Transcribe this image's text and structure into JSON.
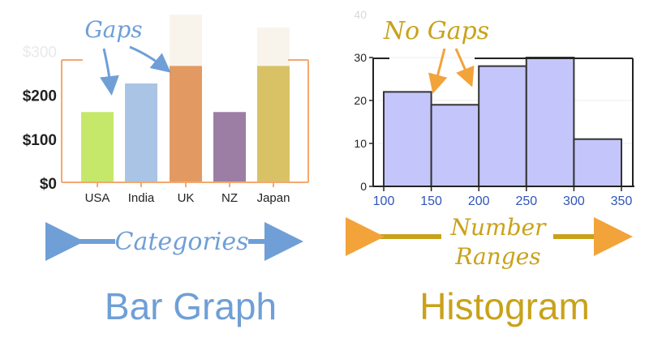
{
  "chart_data": [
    {
      "type": "bar",
      "categories": [
        "USA",
        "India",
        "UK",
        "NZ",
        "Japan"
      ],
      "values": [
        160,
        225,
        265,
        160,
        265
      ],
      "y_ticks": [
        "$0",
        "$100",
        "$200",
        "$300"
      ],
      "ylim": [
        0,
        380
      ],
      "colors": [
        "#c6e86a",
        "#a9c4e4",
        "#e29a62",
        "#9c7ea4",
        "#d9c266"
      ],
      "annotation": "Gaps",
      "axis_caption": "Categories",
      "caption": "Bar Graph",
      "accent": "#6f9fd6",
      "axis_color": "#f4a870"
    },
    {
      "type": "bar",
      "x_ticks": [
        "100",
        "150",
        "200",
        "250",
        "300",
        "350"
      ],
      "bins": [
        [
          100,
          150
        ],
        [
          150,
          200
        ],
        [
          200,
          250
        ],
        [
          250,
          300
        ],
        [
          300,
          350
        ]
      ],
      "values": [
        22,
        19,
        28,
        30,
        11
      ],
      "y_ticks": [
        "0",
        "10",
        "20",
        "30",
        "40"
      ],
      "ylim": [
        0,
        40
      ],
      "bar_color": "#c4c6fb",
      "annotation": "No Gaps",
      "axis_caption_line1": "Number",
      "axis_caption_line2": "Ranges",
      "caption": "Histogram",
      "accent": "#c9a21a"
    }
  ]
}
